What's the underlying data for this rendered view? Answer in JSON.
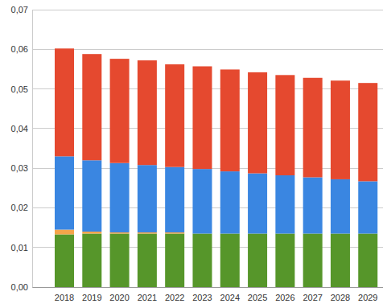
{
  "chart_data": {
    "type": "bar",
    "stacked": true,
    "grid": true,
    "categories": [
      "2018",
      "2019",
      "2020",
      "2021",
      "2022",
      "2023",
      "2024",
      "2025",
      "2026",
      "2027",
      "2028",
      "2029"
    ],
    "series": [
      {
        "color": "#56962a",
        "values": [
          0.0133,
          0.0135,
          0.0135,
          0.0135,
          0.0135,
          0.0135,
          0.0135,
          0.0135,
          0.0135,
          0.0135,
          0.0135,
          0.0135
        ]
      },
      {
        "color": "#f4a54b",
        "values": [
          0.0012,
          0.0005,
          0.0003,
          0.0003,
          0.0003,
          0,
          0,
          0,
          0,
          0,
          0,
          0
        ]
      },
      {
        "color": "#3a86e1",
        "values": [
          0.0185,
          0.018,
          0.0175,
          0.017,
          0.0165,
          0.0163,
          0.0157,
          0.0152,
          0.0147,
          0.0142,
          0.0137,
          0.0132
        ]
      },
      {
        "color": "#e5492f",
        "values": [
          0.0272,
          0.0268,
          0.0263,
          0.0264,
          0.0259,
          0.0259,
          0.0257,
          0.0255,
          0.0253,
          0.0251,
          0.0249,
          0.0248
        ]
      }
    ],
    "ylim": [
      0,
      0.07
    ],
    "yticks": [
      {
        "value": 0,
        "label": "0,00"
      },
      {
        "value": 0.01,
        "label": "0,01"
      },
      {
        "value": 0.02,
        "label": "0,02"
      },
      {
        "value": 0.03,
        "label": "0,03"
      },
      {
        "value": 0.04,
        "label": "0,04"
      },
      {
        "value": 0.05,
        "label": "0,05"
      },
      {
        "value": 0.06,
        "label": "0,06"
      },
      {
        "value": 0.07,
        "label": "0,07"
      }
    ]
  }
}
